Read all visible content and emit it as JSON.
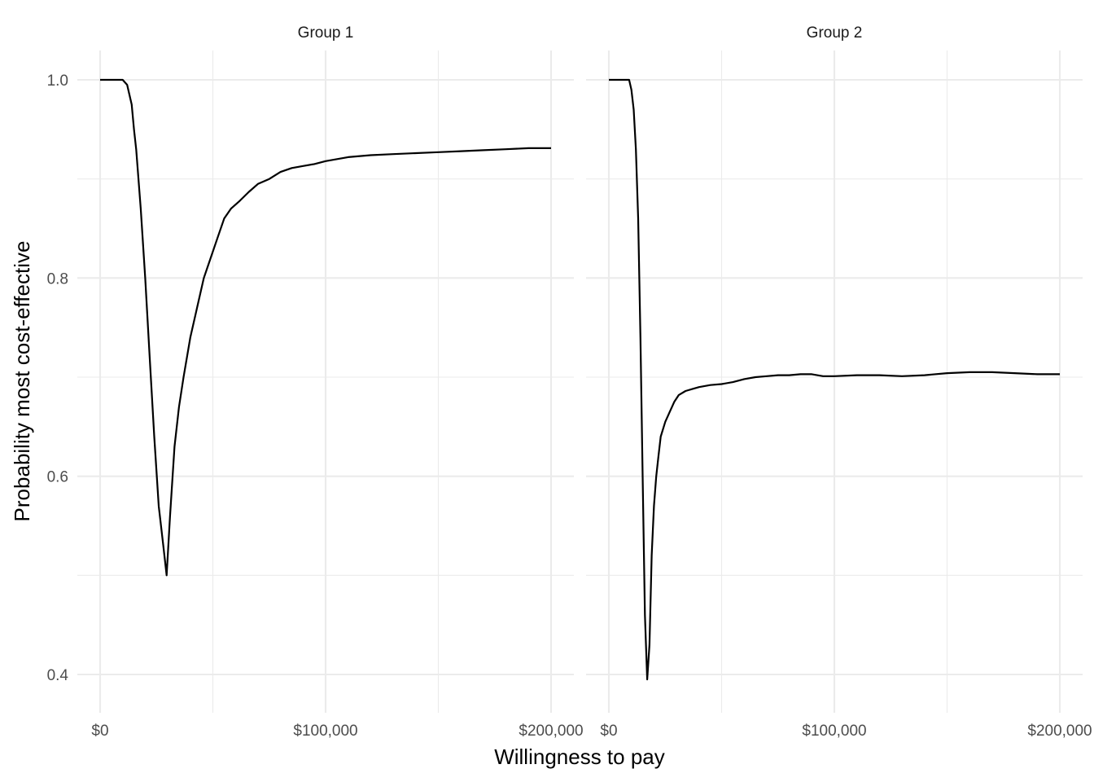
{
  "chart_data": {
    "type": "line",
    "xlabel": "Willingness to pay",
    "ylabel": "Probability most cost-effective",
    "xlim": [
      0,
      200000
    ],
    "ylim": [
      0.4,
      1.0
    ],
    "x_major_ticks": [
      0,
      100000,
      200000
    ],
    "x_tick_labels": [
      "$0",
      "$100,000",
      "$200,000"
    ],
    "y_major_ticks": [
      0.4,
      0.6,
      0.8,
      1.0
    ],
    "y_tick_labels": [
      "0.4",
      "0.6",
      "0.8",
      "1.0"
    ],
    "grid": true,
    "legend": "none",
    "panels": [
      {
        "label": "Group 1",
        "x": [
          0,
          5000,
          10000,
          12000,
          14000,
          15000,
          16000,
          18000,
          20000,
          22000,
          24000,
          26000,
          28000,
          29500,
          31000,
          33000,
          35000,
          37000,
          40000,
          43000,
          46000,
          49000,
          52000,
          55000,
          58000,
          62000,
          66000,
          70000,
          75000,
          80000,
          85000,
          90000,
          95000,
          100000,
          110000,
          120000,
          130000,
          140000,
          150000,
          160000,
          170000,
          180000,
          190000,
          200000
        ],
        "y": [
          1.0,
          1.0,
          1.0,
          0.995,
          0.975,
          0.95,
          0.93,
          0.87,
          0.8,
          0.72,
          0.64,
          0.57,
          0.53,
          0.5,
          0.56,
          0.63,
          0.67,
          0.7,
          0.74,
          0.77,
          0.8,
          0.82,
          0.84,
          0.86,
          0.87,
          0.878,
          0.887,
          0.895,
          0.9,
          0.907,
          0.911,
          0.913,
          0.915,
          0.918,
          0.922,
          0.924,
          0.925,
          0.926,
          0.927,
          0.928,
          0.929,
          0.93,
          0.931,
          0.931
        ]
      },
      {
        "label": "Group 2",
        "x": [
          0,
          5000,
          9000,
          10000,
          11000,
          12000,
          13000,
          14000,
          15000,
          16000,
          17000,
          18000,
          19000,
          20000,
          21000,
          22000,
          23000,
          25000,
          27000,
          29000,
          31000,
          34000,
          37000,
          40000,
          45000,
          50000,
          55000,
          60000,
          65000,
          70000,
          75000,
          80000,
          85000,
          90000,
          95000,
          100000,
          110000,
          120000,
          130000,
          140000,
          150000,
          160000,
          170000,
          180000,
          190000,
          200000
        ],
        "y": [
          1.0,
          1.0,
          1.0,
          0.99,
          0.97,
          0.93,
          0.86,
          0.74,
          0.6,
          0.46,
          0.395,
          0.43,
          0.52,
          0.57,
          0.6,
          0.62,
          0.64,
          0.655,
          0.665,
          0.675,
          0.682,
          0.686,
          0.688,
          0.69,
          0.692,
          0.693,
          0.695,
          0.698,
          0.7,
          0.701,
          0.702,
          0.702,
          0.703,
          0.703,
          0.701,
          0.701,
          0.702,
          0.702,
          0.701,
          0.702,
          0.704,
          0.705,
          0.705,
          0.704,
          0.703,
          0.703
        ]
      }
    ]
  }
}
